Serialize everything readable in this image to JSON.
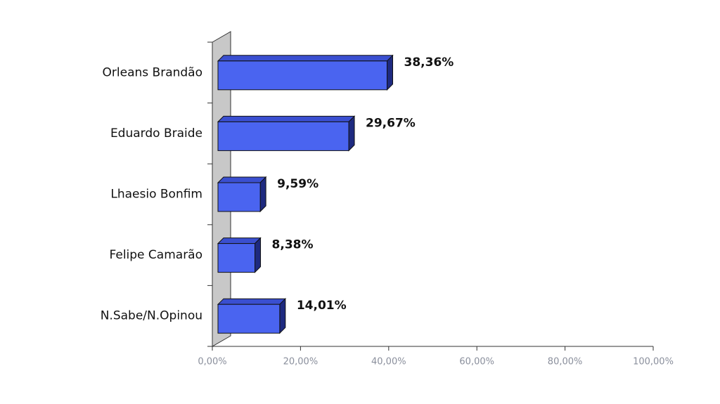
{
  "chart_data": {
    "type": "bar",
    "orientation": "horizontal",
    "categories": [
      "Orleans Brandão",
      "Eduardo Braide",
      "Lhaesio Bonfim",
      "Felipe Camarão",
      "N.Sabe/N.Opinou"
    ],
    "values": [
      38.36,
      29.67,
      9.59,
      8.38,
      14.01
    ],
    "value_labels": [
      "38,36%",
      "29,67%",
      "9,59%",
      "8,38%",
      "14,01%"
    ],
    "color": "#4a64f0",
    "xlim": [
      0,
      100
    ],
    "xticks": [
      {
        "value": 0,
        "label": "0,00%"
      },
      {
        "value": 20,
        "label": "20,00%"
      },
      {
        "value": 40,
        "label": "40,00%"
      },
      {
        "value": 60,
        "label": "60,00%"
      },
      {
        "value": 80,
        "label": "80,00%"
      },
      {
        "value": 100,
        "label": "100,00%"
      }
    ]
  }
}
